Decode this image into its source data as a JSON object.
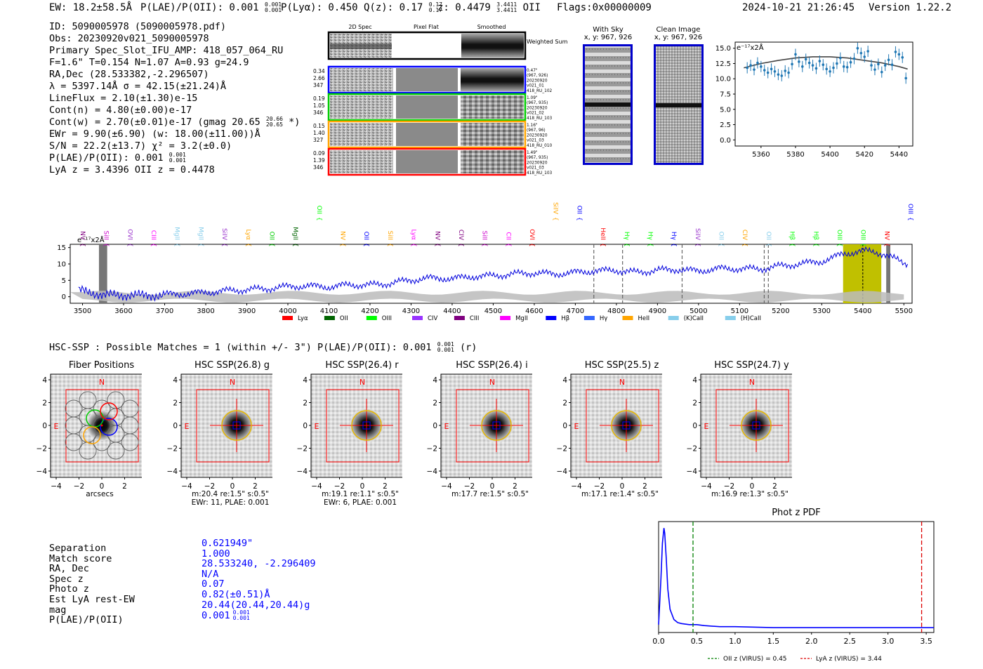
{
  "header": {
    "ew": "EW: 18.2±58.5Å",
    "plae_label": "P(LAE)/P(OII): 0.001",
    "plae_sup": "0.001",
    "plae_sub": "0.001",
    "plya": "P(Lyα): 0.450",
    "qz_label": "Q(z): 0.17",
    "qz_sup": "0.17",
    "qz_sub": "0.17",
    "z_label": "z: 0.4479",
    "z_sup": "3.4411",
    "z_sub": "3.4411",
    "z_line": "OII",
    "flags": "Flags:0x00000009",
    "datetime": "2024-10-21 21:26:45",
    "version": "Version 1.22.2"
  },
  "info": {
    "id": "ID: 5090005978 (5090005978.pdf)",
    "obs": "Obs: 20230920v021_5090005978",
    "primary": "Primary Spec_Slot_IFU_AMP: 418_057_064_RU",
    "fiber": "F=1.6\"  T=0.154  N=1.07  A=0.93  g=24.9",
    "radec": "RA,Dec (28.533382,-2.296507)",
    "lambda": "λ = 5397.14Å  σ = 42.15(±21.24)Å",
    "lineflux": "LineFlux = 2.10(±1.30)e-15",
    "contn": "Cont(n) = 4.80(±0.00)e-17",
    "contw": "Cont(w) = 2.70(±0.01)e-17 (gmag 20.65",
    "contw_sup": "20.66",
    "contw_sub": "20.65",
    "contw_end": "*)",
    "ewr": "EWr = 9.90(±6.90) (w: 18.00(±11.00))Å",
    "sn": "S/N = 22.2(±13.7)  χ² = 3.2(±0.0)",
    "plae": "P(LAE)/P(OII): 0.001",
    "plae_sup": "0.001",
    "plae_sub": "0.001",
    "lyaz": "LyA z = 3.4396  OII z = 0.4478"
  },
  "cutouts": {
    "headers": [
      "2D Spec",
      "Pixel Flat",
      "Smoothed"
    ],
    "weighted_label": "Weighted Sum",
    "rows": [
      {
        "left": [
          "0.34",
          "2.66",
          "347"
        ],
        "right": [
          "0.47\"",
          "(967, 926)",
          "20230920",
          "v021_01",
          "418_RU_102"
        ],
        "color": "#0000ff"
      },
      {
        "left": [
          "0.19",
          "1.05",
          "346"
        ],
        "right": [
          "1.09\"",
          "(967, 935)",
          "20230920",
          "v021_02",
          "418_RU_103"
        ],
        "color": "#00cc00"
      },
      {
        "left": [
          "0.15",
          "1.40",
          "327"
        ],
        "right": [
          "1.16\"",
          "(967, 96)",
          "20230920",
          "v021_03",
          "418_RU_010"
        ],
        "color": "#ffa500"
      },
      {
        "left": [
          "0.09",
          "1.39",
          "346"
        ],
        "right": [
          "1.49\"",
          "(967, 935)",
          "20230920",
          "v021_03",
          "418_RU_103"
        ],
        "color": "#ff0000"
      }
    ]
  },
  "sky_panels": {
    "with_sky_title": "With Sky",
    "with_sky_coords": "x, y: 967, 926",
    "clean_title": "Clean Image",
    "clean_coords": "x, y: 967, 926"
  },
  "zoom_plot": {
    "ylabel": "e⁻¹⁷x2Å",
    "yticks": [
      "15.0",
      "12.5",
      "10.0",
      "7.5",
      "5.0",
      "2.5",
      "0.0"
    ],
    "xticks": [
      "5360",
      "5380",
      "5400",
      "5420",
      "5440"
    ]
  },
  "full_spectrum": {
    "ylabel": "e⁻¹⁷x2Å",
    "yticks": [
      "15",
      "10",
      "5",
      "0"
    ],
    "xticks": [
      "3500",
      "3600",
      "3700",
      "3800",
      "3900",
      "4000",
      "4100",
      "4200",
      "4300",
      "4400",
      "4500",
      "4600",
      "4700",
      "4800",
      "4900",
      "5000",
      "5100",
      "5200",
      "5300",
      "5400",
      "5500"
    ],
    "line_labels": [
      {
        "name": "NV",
        "color": "#800080",
        "row": 0
      },
      {
        "name": "SiII",
        "color": "#cc00cc",
        "row": 0
      },
      {
        "name": "OVI",
        "color": "#9933cc",
        "row": 0
      },
      {
        "name": "CIII",
        "color": "#ff00ff",
        "row": 0
      },
      {
        "name": "MgII",
        "color": "#87ceeb",
        "row": 0
      },
      {
        "name": "MgII",
        "color": "#87ceeb",
        "row": 0
      },
      {
        "name": "SiIV",
        "color": "#9933cc",
        "row": 0
      },
      {
        "name": "Lyα",
        "color": "#ffa500",
        "row": 0
      },
      {
        "name": "OII",
        "color": "#00cc00",
        "row": 0
      },
      {
        "name": "MgII",
        "color": "#006400",
        "row": 0
      },
      {
        "name": "OII",
        "color": "#00ff00",
        "row": 1
      },
      {
        "name": "NV",
        "color": "#ffa500",
        "row": 0
      },
      {
        "name": "OII",
        "color": "#0000ff",
        "row": 0
      },
      {
        "name": "SiII",
        "color": "#ffa500",
        "row": 0
      },
      {
        "name": "Lyα",
        "color": "#ff00ff",
        "row": 0
      },
      {
        "name": "NV",
        "color": "#800080",
        "row": 0
      },
      {
        "name": "CIV",
        "color": "#800080",
        "row": 0
      },
      {
        "name": "SiII",
        "color": "#cc00cc",
        "row": 0
      },
      {
        "name": "CII",
        "color": "#ff00ff",
        "row": 0
      },
      {
        "name": "OVI",
        "color": "#ff0000",
        "row": 0
      },
      {
        "name": "SiIV",
        "color": "#ffa500",
        "row": 1
      },
      {
        "name": "OII",
        "color": "#0000ff",
        "row": 1
      },
      {
        "name": "HeII",
        "color": "#ff0000",
        "row": 0
      },
      {
        "name": "Hγ",
        "color": "#00ff00",
        "row": 0
      },
      {
        "name": "Hγ",
        "color": "#00ff00",
        "row": 0
      },
      {
        "name": "Hγ",
        "color": "#0000ff",
        "row": 0
      },
      {
        "name": "SiIV",
        "color": "#9933cc",
        "row": 0
      },
      {
        "name": "OII",
        "color": "#87ceeb",
        "row": 0
      },
      {
        "name": "CIV",
        "color": "#ffa500",
        "row": 0
      },
      {
        "name": "OII",
        "color": "#87ceeb",
        "row": 0
      },
      {
        "name": "Hβ",
        "color": "#00ff00",
        "row": 0
      },
      {
        "name": "Hβ",
        "color": "#00ff00",
        "row": 0
      },
      {
        "name": "OIII",
        "color": "#00ff00",
        "row": 0
      },
      {
        "name": "OIII",
        "color": "#00ff00",
        "row": 0
      },
      {
        "name": "NV",
        "color": "#ff0000",
        "row": 0
      },
      {
        "name": "OIII",
        "color": "#0000ff",
        "row": 1
      }
    ],
    "legend": [
      {
        "name": "Lyα",
        "color": "#ff0000"
      },
      {
        "name": "OII",
        "color": "#006400"
      },
      {
        "name": "OIII",
        "color": "#00ff00"
      },
      {
        "name": "CIV",
        "color": "#9933ff"
      },
      {
        "name": "CIII",
        "color": "#800080"
      },
      {
        "name": "MgII",
        "color": "#ff00ff"
      },
      {
        "name": "Hβ",
        "color": "#0000ff"
      },
      {
        "name": "Hγ",
        "color": "#3366ff"
      },
      {
        "name": "HeII",
        "color": "#ffa500"
      },
      {
        "name": "(K)CaII",
        "color": "#87ceeb"
      },
      {
        "name": "(H)CaII",
        "color": "#87ceeb"
      }
    ]
  },
  "hsc": {
    "summary": "HSC-SSP : Possible Matches = 1 (within +/- 3\")  P(LAE)/P(OII): 0.001",
    "summary_sup": "0.001",
    "summary_sub": "0.001",
    "summary_end": "(r)",
    "panels": [
      {
        "title": "Fiber Positions",
        "cap1": "arcsecs",
        "cap2": ""
      },
      {
        "title": "HSC SSP(26.8) g",
        "cap1": "m:20.4  re:1.5\"  s:0.5\"",
        "cap2": "EWr: 11, PLAE: 0.001"
      },
      {
        "title": "HSC SSP(26.4) r",
        "cap1": "m:19.1  re:1.1\"  s:0.5\"",
        "cap2": "EWr: 6, PLAE: 0.001"
      },
      {
        "title": "HSC SSP(26.4) i",
        "cap1": "m:17.7  re:1.5\"  s:0.5\"",
        "cap2": ""
      },
      {
        "title": "HSC SSP(25.5) z",
        "cap1": "m:17.1  re:1.4\"  s:0.5\"",
        "cap2": ""
      },
      {
        "title": "HSC SSP(24.7) y",
        "cap1": "m:16.9  re:1.3\"  s:0.5\"",
        "cap2": ""
      }
    ],
    "n_label": "N",
    "e_label": "E",
    "yticks": [
      "4",
      "2",
      "0",
      "−2",
      "−4"
    ],
    "xticks": [
      "−4",
      "−2",
      "0",
      "2",
      "4"
    ]
  },
  "match": {
    "labels": [
      "Separation",
      "Match score",
      "RA, Dec",
      "Spec z",
      "Photo z",
      "Est LyA rest-EW",
      "mag",
      "P(LAE)/P(OII)"
    ],
    "values": [
      "0.621949\"",
      "1.000",
      "28.533240, -2.296409",
      "N/A",
      "0.07",
      "0.82(±0.51)Å",
      "20.44(20.44,20.44)g",
      "0.001"
    ],
    "plae_sup": "0.001",
    "plae_sub": "0.001"
  },
  "photz": {
    "title": "Phot z PDF",
    "xticks": [
      "0.0",
      "0.5",
      "1.0",
      "1.5",
      "2.0",
      "2.5",
      "3.0",
      "3.5"
    ],
    "legend_oii": "OII z (VIRUS) = 0.45",
    "legend_lya": "LyA z (VIRUS) = 3.44"
  },
  "chart_data": [
    {
      "type": "scatter",
      "title": "",
      "ylabel": "e-17x2Å",
      "xlim": [
        5345,
        5448
      ],
      "ylim": [
        -1,
        16
      ],
      "x": [
        5352,
        5354,
        5356,
        5358,
        5360,
        5362,
        5364,
        5366,
        5368,
        5370,
        5372,
        5374,
        5376,
        5378,
        5380,
        5382,
        5384,
        5386,
        5388,
        5390,
        5392,
        5394,
        5396,
        5398,
        5400,
        5402,
        5404,
        5406,
        5408,
        5410,
        5412,
        5414,
        5416,
        5418,
        5420,
        5422,
        5424,
        5426,
        5428,
        5430,
        5432,
        5434,
        5436,
        5438,
        5440,
        5442,
        5444
      ],
      "y": [
        11.8,
        12.2,
        11.5,
        12.6,
        12.0,
        11.4,
        11.0,
        11.6,
        11.2,
        10.7,
        10.5,
        11.3,
        11.0,
        12.4,
        14.0,
        12.8,
        12.0,
        13.2,
        12.6,
        12.2,
        11.7,
        12.9,
        12.3,
        11.6,
        11.2,
        11.8,
        12.5,
        13.4,
        12.0,
        11.9,
        12.7,
        13.3,
        15.0,
        14.2,
        13.6,
        14.5,
        12.2,
        11.5,
        12.4,
        11.1,
        12.2,
        13.1,
        12.3,
        14.4,
        14.0,
        13.5,
        10.1
      ],
      "fit_curve": {
        "x": [
          5350,
          5360,
          5370,
          5380,
          5390,
          5400,
          5410,
          5420,
          5430,
          5440,
          5445
        ],
        "y": [
          11.8,
          12.5,
          13.0,
          13.4,
          13.6,
          13.6,
          13.4,
          13.0,
          12.6,
          12.0,
          11.6
        ]
      }
    },
    {
      "type": "line",
      "title": "",
      "ylabel": "e-17x2Å",
      "xlim": [
        3470,
        5520
      ],
      "ylim": [
        -2,
        16
      ],
      "x": [
        3500,
        3550,
        3600,
        3650,
        3700,
        3750,
        3800,
        3850,
        3900,
        3950,
        4000,
        4050,
        4100,
        4150,
        4200,
        4250,
        4300,
        4350,
        4400,
        4450,
        4500,
        4550,
        4600,
        4650,
        4700,
        4750,
        4800,
        4850,
        4900,
        4950,
        5000,
        5050,
        5100,
        5150,
        5200,
        5250,
        5300,
        5350,
        5400,
        5450,
        5500
      ],
      "y": [
        1.5,
        0.5,
        0.8,
        1.0,
        1.2,
        1.5,
        2.0,
        2.5,
        2.8,
        3.0,
        3.5,
        3.5,
        3.0,
        3.5,
        3.2,
        3.6,
        4.5,
        5.0,
        4.8,
        5.5,
        5.8,
        6.5,
        7.0,
        6.8,
        7.5,
        8.2,
        8.5,
        8.0,
        8.8,
        9.0,
        8.5,
        9.2,
        9.0,
        8.8,
        9.5,
        10.0,
        10.5,
        12.5,
        13.5,
        12.5,
        9.5
      ],
      "highlight_range": [
        5352,
        5445
      ],
      "dashed_x": [
        4745,
        4815,
        4960,
        5160,
        5170
      ],
      "masked_x": [
        [
          3540,
          3560
        ],
        [
          5457,
          5467
        ]
      ]
    },
    {
      "type": "line",
      "title": "Phot z PDF",
      "xlim": [
        0,
        3.6
      ],
      "x": [
        0.0,
        0.03,
        0.05,
        0.07,
        0.08,
        0.1,
        0.12,
        0.15,
        0.2,
        0.25,
        0.3,
        0.4,
        0.5,
        0.6,
        0.8,
        1.0,
        1.5,
        2.0,
        2.5,
        3.0,
        3.5,
        3.6
      ],
      "y": [
        0.05,
        0.5,
        0.85,
        1.0,
        0.95,
        0.7,
        0.4,
        0.2,
        0.1,
        0.07,
        0.06,
        0.05,
        0.05,
        0.04,
        0.03,
        0.03,
        0.02,
        0.02,
        0.02,
        0.02,
        0.02,
        0.02
      ],
      "vlines": [
        {
          "x": 0.45,
          "label": "OII z (VIRUS) = 0.45"
        },
        {
          "x": 3.44,
          "label": "LyA z (VIRUS) = 3.44"
        }
      ]
    }
  ]
}
